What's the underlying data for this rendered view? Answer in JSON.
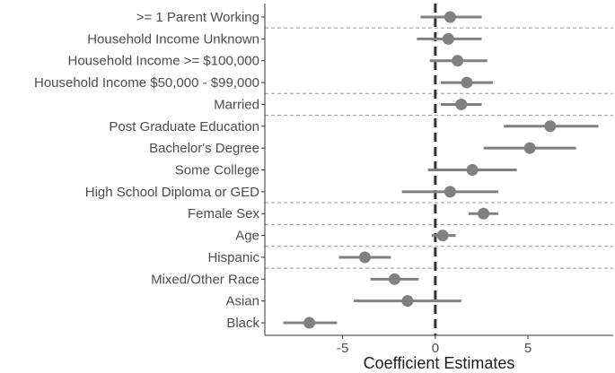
{
  "chart_data": {
    "type": "coefficient-plot",
    "title": "",
    "xlabel": "Coefficient Estimates",
    "ylabel": "",
    "xlim": [
      -9.2,
      9.6
    ],
    "x_ticks": [
      -5,
      0,
      5
    ],
    "x_tick_labels": [
      "-5",
      "0",
      "5"
    ],
    "reference_line": 0,
    "grid": false,
    "terms": [
      {
        "label": ">= 1 Parent Working",
        "estimate": 0.8,
        "lower": -0.8,
        "upper": 2.5
      },
      {
        "label": "Household Income Unknown",
        "estimate": 0.7,
        "lower": -1.0,
        "upper": 2.5
      },
      {
        "label": "Household Income >= $100,000",
        "estimate": 1.2,
        "lower": -0.3,
        "upper": 2.8
      },
      {
        "label": "Household Income $50,000 - $99,000",
        "estimate": 1.7,
        "lower": 0.3,
        "upper": 3.1
      },
      {
        "label": "Married",
        "estimate": 1.4,
        "lower": 0.3,
        "upper": 2.5
      },
      {
        "label": "Post Graduate Education",
        "estimate": 6.2,
        "lower": 3.7,
        "upper": 8.8
      },
      {
        "label": "Bachelor's Degree",
        "estimate": 5.1,
        "lower": 2.6,
        "upper": 7.6
      },
      {
        "label": "Some College",
        "estimate": 2.0,
        "lower": -0.4,
        "upper": 4.4
      },
      {
        "label": "High School Diploma or GED",
        "estimate": 0.8,
        "lower": -1.8,
        "upper": 3.4
      },
      {
        "label": "Female Sex",
        "estimate": 2.6,
        "lower": 1.8,
        "upper": 3.4
      },
      {
        "label": "Age",
        "estimate": 0.4,
        "lower": -0.2,
        "upper": 1.1
      },
      {
        "label": "Hispanic",
        "estimate": -3.8,
        "lower": -5.2,
        "upper": -2.4
      },
      {
        "label": "Mixed/Other Race",
        "estimate": -2.2,
        "lower": -3.5,
        "upper": -0.9
      },
      {
        "label": "Asian",
        "estimate": -1.5,
        "lower": -4.4,
        "upper": 1.4
      },
      {
        "label": "Black",
        "estimate": -6.8,
        "lower": -8.2,
        "upper": -5.3
      }
    ],
    "group_separators_after_term": [
      0,
      3,
      4,
      8,
      9,
      10,
      11
    ],
    "colors": {
      "point": "#808080",
      "interval": "#808080",
      "reference_line": "#333333",
      "separator": "#999999",
      "axis": "#333333"
    }
  }
}
